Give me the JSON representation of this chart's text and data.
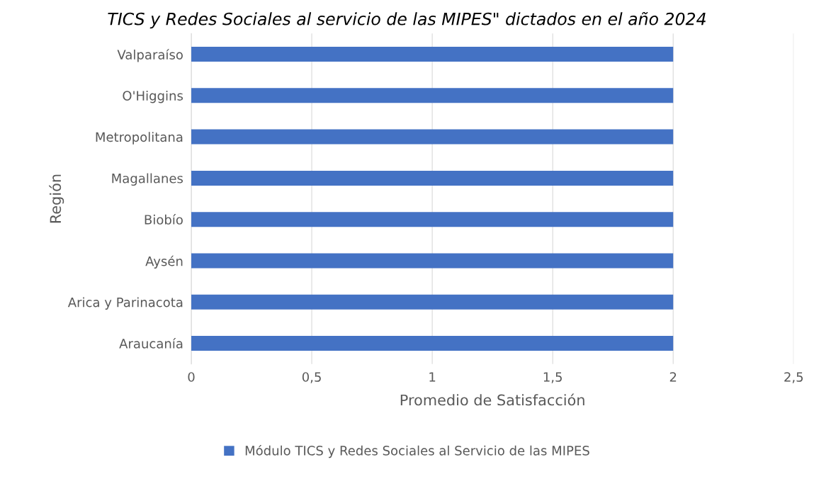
{
  "chart_data": {
    "type": "bar",
    "orientation": "horizontal",
    "title": "TICS y Redes Sociales al servicio de las MIPES\" dictados en el año 2024",
    "categories": [
      "Valparaíso",
      "O'Higgins",
      "Metropolitana",
      "Magallanes",
      "Biobío",
      "Aysén",
      "Arica y Parinacota",
      "Araucanía"
    ],
    "series": [
      {
        "name": "Módulo TICS y Redes Sociales al Servicio de las MIPES",
        "color": "#4472c4",
        "values": [
          2,
          2,
          2,
          2,
          2,
          2,
          2,
          2
        ]
      }
    ],
    "xlabel": "Promedio de Satisfacción",
    "ylabel": "Región",
    "xlim": [
      0,
      2.5
    ],
    "xticks": [
      {
        "value": 0,
        "label": "0"
      },
      {
        "value": 0.5,
        "label": "0,5"
      },
      {
        "value": 1,
        "label": "1"
      },
      {
        "value": 1.5,
        "label": "1,5"
      },
      {
        "value": 2,
        "label": "2"
      },
      {
        "value": 2.5,
        "label": "2,5"
      }
    ],
    "grid": "x",
    "legend": "bottom"
  }
}
